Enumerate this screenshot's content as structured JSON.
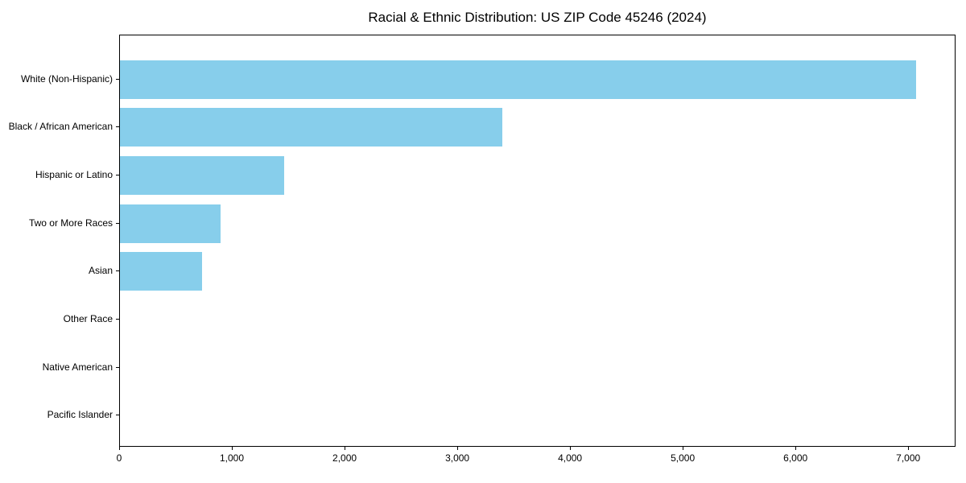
{
  "chart_data": {
    "type": "bar",
    "orientation": "horizontal",
    "title": "Racial & Ethnic Distribution: US ZIP Code 45246 (2024)",
    "categories": [
      "White (Non-Hispanic)",
      "Black / African American",
      "Hispanic or Latino",
      "Two or More Races",
      "Asian",
      "Other Race",
      "Native American",
      "Pacific Islander"
    ],
    "values": [
      7060,
      3390,
      1460,
      890,
      725,
      0,
      0,
      0
    ],
    "xlabel": "",
    "ylabel": "",
    "xlim": [
      0,
      7420
    ],
    "x_ticks": [
      0,
      1000,
      2000,
      3000,
      4000,
      5000,
      6000,
      7000
    ],
    "x_tick_labels": [
      "0",
      "1,000",
      "2,000",
      "3,000",
      "4,000",
      "5,000",
      "6,000",
      "7,000"
    ],
    "bar_color": "#87ceeb",
    "text_color": "#000000",
    "grid": false,
    "legend": null
  }
}
